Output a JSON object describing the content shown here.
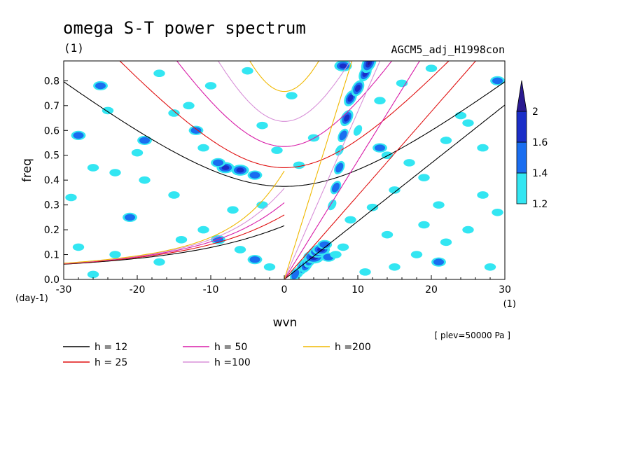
{
  "chart_data": {
    "type": "heatmap",
    "title": "omega S-T power spectrum",
    "subtitle_left": "(1)",
    "subtitle_right": "AGCM5_adj_H1998con",
    "xlabel": "wvn",
    "ylabel": "freq",
    "x_unit_label": "(1)",
    "y_unit_label": "(day-1)",
    "level_note": "[ plev=50000 Pa ]",
    "xlim": [
      -30,
      30
    ],
    "ylim": [
      0,
      0.88
    ],
    "x_ticks": [
      "-30",
      "-20",
      "-10",
      "0",
      "10",
      "20",
      "30"
    ],
    "x_tick_values": [
      -30,
      -20,
      -10,
      0,
      10,
      20,
      30
    ],
    "y_ticks": [
      "0.0",
      "0.1",
      "0.2",
      "0.3",
      "0.4",
      "0.5",
      "0.6",
      "0.7",
      "0.8"
    ],
    "y_tick_values": [
      0,
      0.1,
      0.2,
      0.3,
      0.4,
      0.5,
      0.6,
      0.7,
      0.8
    ],
    "colorbar": {
      "labels": [
        "1.2",
        "1.4",
        "1.6",
        "2"
      ],
      "colors": [
        "#33e6f2",
        "#1a6ef0",
        "#1a2ec8",
        "#2a1a90"
      ]
    },
    "dispersion_curves": [
      {
        "label": "h = 12",
        "h": 12,
        "color": "#000000"
      },
      {
        "label": "h = 25",
        "h": 25,
        "color": "#e01010"
      },
      {
        "label": "h = 50",
        "h": 50,
        "color": "#d81ca8"
      },
      {
        "label": "h =100",
        "h": 100,
        "color": "#d890d8"
      },
      {
        "label": "h =200",
        "h": 200,
        "color": "#f0b800"
      }
    ],
    "power_blobs": [
      {
        "k": 2,
        "f": 0.03,
        "level": 2
      },
      {
        "k": 2.5,
        "f": 0.05,
        "level": 3
      },
      {
        "k": 3,
        "f": 0.06,
        "level": 3
      },
      {
        "k": 3.5,
        "f": 0.08,
        "level": 3
      },
      {
        "k": 4,
        "f": 0.09,
        "level": 4
      },
      {
        "k": 4.5,
        "f": 0.11,
        "level": 3
      },
      {
        "k": 5,
        "f": 0.12,
        "level": 3
      },
      {
        "k": 5.5,
        "f": 0.14,
        "level": 2
      },
      {
        "k": 1.5,
        "f": 0.02,
        "level": 2
      },
      {
        "k": 6,
        "f": 0.09,
        "level": 2
      },
      {
        "k": 7,
        "f": 0.1,
        "level": 1
      },
      {
        "k": 8,
        "f": 0.13,
        "level": 1
      },
      {
        "k": 7,
        "f": 0.37,
        "level": 2
      },
      {
        "k": 7.5,
        "f": 0.45,
        "level": 2
      },
      {
        "k": 8,
        "f": 0.58,
        "level": 2
      },
      {
        "k": 8.5,
        "f": 0.65,
        "level": 3
      },
      {
        "k": 9,
        "f": 0.73,
        "level": 3
      },
      {
        "k": 10,
        "f": 0.77,
        "level": 3
      },
      {
        "k": 11,
        "f": 0.83,
        "level": 3
      },
      {
        "k": 11.5,
        "f": 0.87,
        "level": 4
      },
      {
        "k": 8,
        "f": 0.86,
        "level": 3
      },
      {
        "k": 6.5,
        "f": 0.3,
        "level": 1
      },
      {
        "k": 7.5,
        "f": 0.52,
        "level": 1
      },
      {
        "k": 10,
        "f": 0.6,
        "level": 1
      },
      {
        "k": -8,
        "f": 0.45,
        "level": 3
      },
      {
        "k": -6,
        "f": 0.44,
        "level": 3
      },
      {
        "k": -4,
        "f": 0.42,
        "level": 2
      },
      {
        "k": -9,
        "f": 0.47,
        "level": 2
      },
      {
        "k": -12,
        "f": 0.6,
        "level": 2
      },
      {
        "k": -11,
        "f": 0.53,
        "level": 1
      },
      {
        "k": -13,
        "f": 0.7,
        "level": 1
      },
      {
        "k": -15,
        "f": 0.67,
        "level": 1
      },
      {
        "k": -19,
        "f": 0.56,
        "level": 2
      },
      {
        "k": -20,
        "f": 0.51,
        "level": 1
      },
      {
        "k": -23,
        "f": 0.43,
        "level": 1
      },
      {
        "k": -26,
        "f": 0.45,
        "level": 1
      },
      {
        "k": -28,
        "f": 0.58,
        "level": 2
      },
      {
        "k": -21,
        "f": 0.25,
        "level": 2
      },
      {
        "k": -19,
        "f": 0.4,
        "level": 1
      },
      {
        "k": -11,
        "f": 0.2,
        "level": 1
      },
      {
        "k": -9,
        "f": 0.16,
        "level": 2
      },
      {
        "k": -6,
        "f": 0.12,
        "level": 1
      },
      {
        "k": -4,
        "f": 0.08,
        "level": 2
      },
      {
        "k": -2,
        "f": 0.05,
        "level": 1
      },
      {
        "k": -17,
        "f": 0.07,
        "level": 1
      },
      {
        "k": -14,
        "f": 0.16,
        "level": 1
      },
      {
        "k": -25,
        "f": 0.78,
        "level": 2
      },
      {
        "k": -24,
        "f": 0.68,
        "level": 1
      },
      {
        "k": -17,
        "f": 0.83,
        "level": 1
      },
      {
        "k": -10,
        "f": 0.78,
        "level": 1
      },
      {
        "k": -5,
        "f": 0.84,
        "level": 1
      },
      {
        "k": -3,
        "f": 0.62,
        "level": 1
      },
      {
        "k": -1,
        "f": 0.52,
        "level": 1
      },
      {
        "k": 2,
        "f": 0.46,
        "level": 1
      },
      {
        "k": 4,
        "f": 0.57,
        "level": 1
      },
      {
        "k": 1,
        "f": 0.74,
        "level": 1
      },
      {
        "k": -7,
        "f": 0.28,
        "level": 1
      },
      {
        "k": 13,
        "f": 0.53,
        "level": 2
      },
      {
        "k": 14,
        "f": 0.5,
        "level": 1
      },
      {
        "k": 17,
        "f": 0.47,
        "level": 1
      },
      {
        "k": 19,
        "f": 0.41,
        "level": 1
      },
      {
        "k": 22,
        "f": 0.56,
        "level": 1
      },
      {
        "k": 25,
        "f": 0.63,
        "level": 1
      },
      {
        "k": 27,
        "f": 0.53,
        "level": 1
      },
      {
        "k": 29,
        "f": 0.8,
        "level": 2
      },
      {
        "k": 24,
        "f": 0.66,
        "level": 1
      },
      {
        "k": 15,
        "f": 0.36,
        "level": 1
      },
      {
        "k": 12,
        "f": 0.29,
        "level": 1
      },
      {
        "k": 21,
        "f": 0.3,
        "level": 1
      },
      {
        "k": 27,
        "f": 0.34,
        "level": 1
      },
      {
        "k": 14,
        "f": 0.18,
        "level": 1
      },
      {
        "k": 18,
        "f": 0.1,
        "level": 1
      },
      {
        "k": 22,
        "f": 0.15,
        "level": 1
      },
      {
        "k": 25,
        "f": 0.2,
        "level": 1
      },
      {
        "k": 28,
        "f": 0.05,
        "level": 1
      },
      {
        "k": 21,
        "f": 0.07,
        "level": 2
      },
      {
        "k": 15,
        "f": 0.05,
        "level": 1
      },
      {
        "k": 11,
        "f": 0.03,
        "level": 1
      },
      {
        "k": 16,
        "f": 0.79,
        "level": 1
      },
      {
        "k": 20,
        "f": 0.85,
        "level": 1
      },
      {
        "k": 13,
        "f": 0.72,
        "level": 1
      },
      {
        "k": -28,
        "f": 0.13,
        "level": 1
      },
      {
        "k": -26,
        "f": 0.02,
        "level": 1
      },
      {
        "k": -23,
        "f": 0.1,
        "level": 1
      },
      {
        "k": -29,
        "f": 0.33,
        "level": 1
      },
      {
        "k": -15,
        "f": 0.34,
        "level": 1
      },
      {
        "k": -3,
        "f": 0.3,
        "level": 1
      },
      {
        "k": 9,
        "f": 0.24,
        "level": 1
      },
      {
        "k": 19,
        "f": 0.22,
        "level": 1
      },
      {
        "k": 29,
        "f": 0.27,
        "level": 1
      }
    ]
  }
}
